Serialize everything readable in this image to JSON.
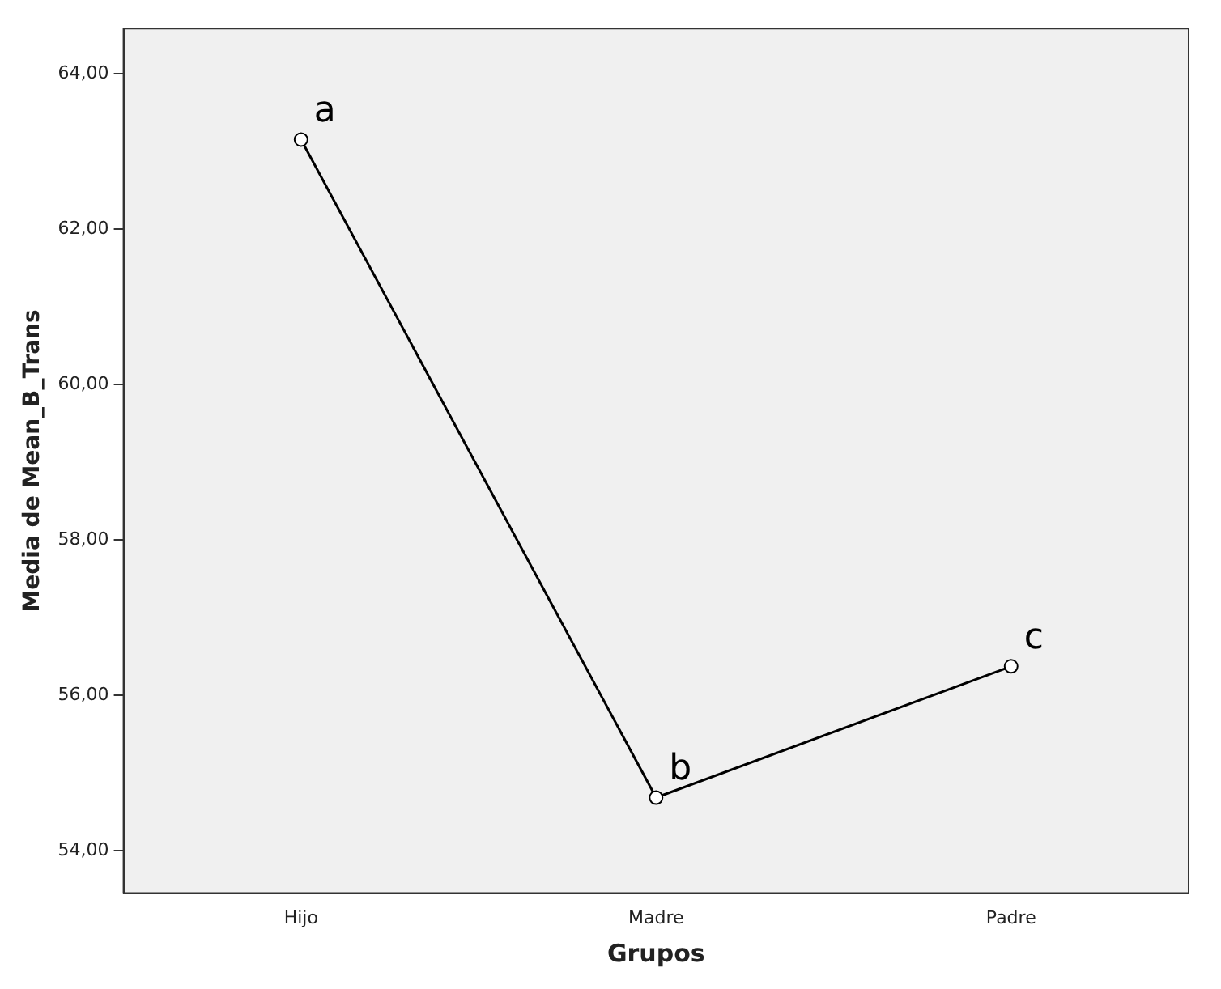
{
  "chart_data": {
    "type": "line",
    "xlabel": "Grupos",
    "ylabel": "Media de Mean_B_Trans",
    "categories": [
      "Hijo",
      "Madre",
      "Padre"
    ],
    "series": [
      {
        "color": "#000000",
        "values": [
          63.15,
          54.68,
          56.37
        ]
      }
    ],
    "ylim": [
      53.45,
      64.58
    ],
    "yticks": [
      {
        "value": 54,
        "label": "54,00"
      },
      {
        "value": 56,
        "label": "56,00"
      },
      {
        "value": 58,
        "label": "58,00"
      },
      {
        "value": 60,
        "label": "60,00"
      },
      {
        "value": 62,
        "label": "62,00"
      },
      {
        "value": 64,
        "label": "64,00"
      }
    ],
    "grid": false,
    "legend": false,
    "marker": "circle",
    "line_style": "solid",
    "annotations": [
      {
        "text": "a",
        "x": "Hijo",
        "y": 63.15
      },
      {
        "text": "b",
        "x": "Madre",
        "y": 54.68
      },
      {
        "text": "c",
        "x": "Padre",
        "y": 56.37
      }
    ]
  }
}
